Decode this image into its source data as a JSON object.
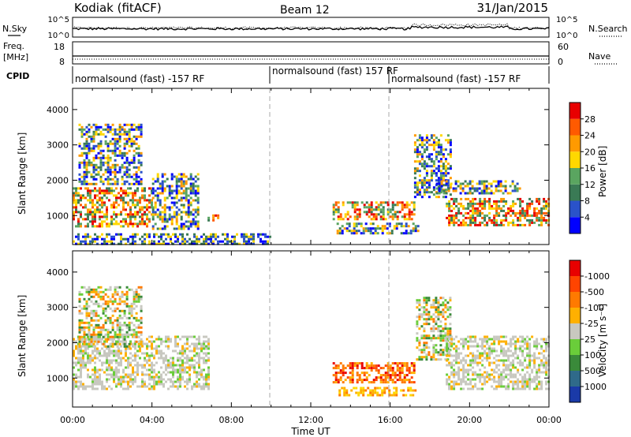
{
  "header": {
    "station": "Kodiak (fitACF)",
    "beam": "Beam 12",
    "date": "31/Jan/2015"
  },
  "top_panels": {
    "nsky_label": "N.Sky",
    "nsky_ticks": [
      "10^5",
      "10^0"
    ],
    "nsearch_label": "N.Search",
    "nsearch_ticks": [
      "10^5",
      "10^0"
    ],
    "freq_label": "Freq.",
    "freq_unit": "[MHz]",
    "freq_ticks": [
      "18",
      "8"
    ],
    "nave_label": "Nave",
    "nave_ticks": [
      "60",
      "0"
    ],
    "cpid_label": "CPID"
  },
  "cpid_segments": [
    {
      "start_hour": 0,
      "end_hour": 10,
      "label": "normalsound (fast) -157 RF"
    },
    {
      "start_hour": 10,
      "end_hour": 16,
      "label": "normalsound (fast) 157 RF"
    },
    {
      "start_hour": 16,
      "end_hour": 24,
      "label": "normalsound (fast) -157 RF"
    }
  ],
  "x_axis": {
    "label": "Time UT",
    "ticks": [
      "00:00",
      "04:00",
      "08:00",
      "12:00",
      "16:00",
      "20:00",
      "00:00"
    ],
    "range_hours": [
      0,
      24
    ]
  },
  "chart_data": [
    {
      "type": "heatmap",
      "parameter": "Power",
      "ylabel": "Slant Range [km]",
      "yticks": [
        "1000",
        "2000",
        "3000",
        "4000"
      ],
      "ylim": [
        180,
        4600
      ],
      "colorbar": {
        "label": "Power [dB]",
        "tick_labels": [
          "4",
          "8",
          "12",
          "16",
          "20",
          "24",
          "28"
        ],
        "colors": [
          "#0000ff",
          "#2a52c9",
          "#3a7a55",
          "#5aa560",
          "#ffd800",
          "#ff9a00",
          "#ff5a00",
          "#e80000"
        ]
      },
      "scatter_regions": [
        {
          "t": [
            0.0,
            4.0
          ],
          "range": [
            700,
            1800
          ],
          "level": "high"
        },
        {
          "t": [
            0.3,
            3.5
          ],
          "range": [
            1900,
            3600
          ],
          "level": "medium"
        },
        {
          "t": [
            4.0,
            6.3
          ],
          "range": [
            600,
            2200
          ],
          "level": "medium"
        },
        {
          "t": [
            6.8,
            7.3
          ],
          "range": [
            850,
            1100
          ],
          "level": "high"
        },
        {
          "t": [
            0.0,
            10.0
          ],
          "range": [
            200,
            500
          ],
          "level": "low"
        },
        {
          "t": [
            13.1,
            17.2
          ],
          "range": [
            900,
            1400
          ],
          "level": "high"
        },
        {
          "t": [
            13.3,
            17.4
          ],
          "range": [
            500,
            800
          ],
          "level": "medium"
        },
        {
          "t": [
            17.2,
            19.0
          ],
          "range": [
            1500,
            3300
          ],
          "level": "medium"
        },
        {
          "t": [
            18.8,
            24.0
          ],
          "range": [
            700,
            1500
          ],
          "level": "high"
        },
        {
          "t": [
            18.3,
            22.5
          ],
          "range": [
            1600,
            2000
          ],
          "level": "medium"
        }
      ]
    },
    {
      "type": "heatmap",
      "parameter": "Velocity",
      "ylabel": "Slant Range [km]",
      "yticks": [
        "1000",
        "2000",
        "3000",
        "4000"
      ],
      "ylim": [
        180,
        4600
      ],
      "colorbar": {
        "label": "Velocity [m s⁻¹]",
        "tick_labels": [
          "1000",
          "500",
          "100",
          "25",
          "-25",
          "-100",
          "-500",
          "-1000"
        ],
        "colors": [
          "#1a3aa8",
          "#2f6a8a",
          "#3a8a3a",
          "#6acd3a",
          "#c8c8c0",
          "#ffb000",
          "#ff7a00",
          "#ff4400",
          "#e80000"
        ]
      },
      "scatter_regions": [
        {
          "t": [
            0.0,
            6.8
          ],
          "range": [
            700,
            2200
          ],
          "level": "ground"
        },
        {
          "t": [
            0.3,
            3.5
          ],
          "range": [
            1900,
            3600
          ],
          "level": "mixed"
        },
        {
          "t": [
            13.1,
            17.2
          ],
          "range": [
            900,
            1450
          ],
          "level": "negative"
        },
        {
          "t": [
            13.4,
            17.3
          ],
          "range": [
            500,
            750
          ],
          "level": "negative-weak"
        },
        {
          "t": [
            17.3,
            19.0
          ],
          "range": [
            1500,
            3300
          ],
          "level": "mixed"
        },
        {
          "t": [
            18.8,
            24.0
          ],
          "range": [
            700,
            2200
          ],
          "level": "ground"
        }
      ]
    }
  ]
}
